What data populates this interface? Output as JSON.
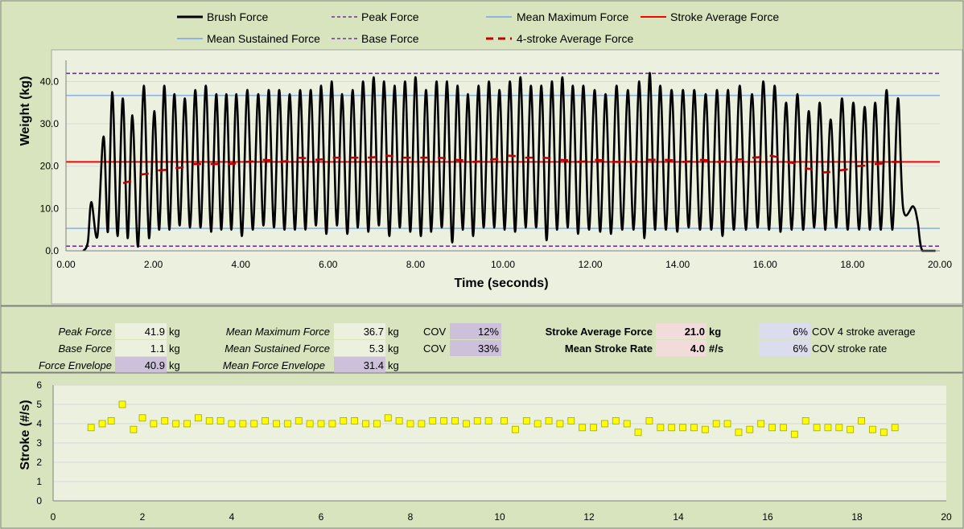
{
  "colors": {
    "background": "#d7e4bd",
    "plot_area": "#ebf1de",
    "brush": "#000000",
    "peak_base": "#7030a0",
    "mean_lines": "#8db4e2",
    "stroke_avg": "#ff0000",
    "four_stroke": "#c00000",
    "marker": "#ffff00",
    "cell_light": "#ebf1de",
    "cell_purple": "#ccc0da",
    "cell_pink": "#f2dcdb",
    "cell_blue": "#dcdcef"
  },
  "chart_data": [
    {
      "type": "line",
      "legend": [
        "Brush Force",
        "Peak Force",
        "Mean Maximum Force",
        "Stroke Average Force",
        "Mean Sustained Force",
        "Base Force",
        "4-stroke Average Force"
      ],
      "xlabel": "Time (seconds)",
      "ylabel": "Weight (kg)",
      "xlim": [
        0,
        20
      ],
      "ylim": [
        0,
        45
      ],
      "x_ticks": [
        "0.00",
        "2.00",
        "4.00",
        "6.00",
        "8.00",
        "10.00",
        "12.00",
        "14.00",
        "16.00",
        "18.00",
        "20.00"
      ],
      "y_ticks": [
        "0.0",
        "10.0",
        "20.0",
        "30.0",
        "40.0"
      ],
      "reference_lines": {
        "peak_force": 41.9,
        "mean_maximum_force": 36.7,
        "stroke_average_force": 21.0,
        "mean_sustained_force": 5.3,
        "base_force": 1.1
      },
      "brush_force": {
        "t_start": 0.4,
        "t_end": 19.6,
        "peak_times": [
          0.58,
          0.86,
          1.06,
          1.3,
          1.52,
          1.78,
          2.02,
          2.25,
          2.48,
          2.72,
          2.96,
          3.2,
          3.44,
          3.67,
          3.9,
          4.15,
          4.4,
          4.64,
          4.88,
          5.12,
          5.36,
          5.6,
          5.84,
          6.08,
          6.32,
          6.56,
          6.8,
          7.04,
          7.28,
          7.52,
          7.76,
          8.0,
          8.24,
          8.48,
          8.72,
          8.96,
          9.2,
          9.44,
          9.68,
          9.92,
          10.16,
          10.4,
          10.64,
          10.88,
          11.12,
          11.36,
          11.6,
          11.84,
          12.1,
          12.35,
          12.6,
          12.86,
          13.12,
          13.36,
          13.6,
          13.86,
          14.12,
          14.38,
          14.64,
          14.9,
          15.15,
          15.42,
          15.7,
          15.96,
          16.22,
          16.48,
          16.74,
          17.0,
          17.25,
          17.5,
          17.76,
          18.02,
          18.28,
          18.52,
          18.78,
          19.04
        ],
        "peak_values": [
          11.5,
          27,
          37.5,
          36,
          32,
          39,
          33,
          39,
          37,
          36,
          38,
          39,
          37,
          37,
          37,
          38,
          37,
          38,
          38,
          37,
          38,
          38,
          39,
          40,
          37,
          38,
          40,
          41,
          40,
          39,
          40,
          41,
          38,
          40,
          40,
          39,
          37,
          39,
          40,
          38,
          40,
          41,
          39,
          39,
          40,
          41,
          39,
          39,
          38,
          37,
          39,
          38,
          40,
          42,
          39,
          38,
          38,
          38,
          37,
          38,
          38,
          39,
          37,
          40,
          39,
          35,
          37,
          33,
          35,
          31,
          36,
          35,
          34,
          35,
          38,
          36
        ],
        "trough_values": [
          3.5,
          4.5,
          3.5,
          3,
          1,
          3,
          5,
          5,
          6,
          5.5,
          5.5,
          4.5,
          5,
          5,
          3.5,
          5,
          6,
          5.5,
          5,
          5,
          5,
          6,
          4,
          6,
          4,
          5.5,
          4.5,
          6,
          3.5,
          5.5,
          4.5,
          3.5,
          4.5,
          5.5,
          2,
          5,
          3.5,
          5.5,
          5.5,
          5,
          4.5,
          5.5,
          5.5,
          2.5,
          5,
          5.5,
          4,
          5,
          4.5,
          4,
          5,
          5,
          3,
          5,
          5,
          4.5,
          5.5,
          5,
          5,
          3.5,
          5,
          5,
          5.5,
          5,
          4.5,
          5,
          5,
          5.5,
          5,
          5.5,
          5,
          5,
          5,
          5,
          5
        ]
      },
      "four_stroke_average": {
        "x": [
          1.4,
          1.8,
          2.2,
          2.6,
          3.0,
          3.4,
          3.8,
          4.2,
          4.6,
          5.0,
          5.4,
          5.8,
          6.2,
          6.6,
          7.0,
          7.4,
          7.8,
          8.2,
          8.6,
          9.0,
          9.4,
          9.8,
          10.2,
          10.6,
          11.0,
          11.4,
          11.8,
          12.2,
          12.6,
          13.0,
          13.4,
          13.8,
          14.2,
          14.6,
          15.0,
          15.4,
          15.8,
          16.2,
          16.6,
          17.0,
          17.4,
          17.8,
          18.2,
          18.6,
          19.0
        ],
        "y": [
          16,
          18,
          19,
          19.5,
          20.5,
          20.5,
          20.5,
          21,
          21.5,
          21,
          22,
          21.5,
          22,
          22,
          22,
          22.5,
          22,
          22,
          22,
          21.5,
          21,
          21.5,
          22.5,
          22,
          22,
          21.5,
          21,
          21.5,
          21,
          21,
          21.5,
          21.5,
          21,
          21.5,
          21,
          21.5,
          22,
          22.5,
          21,
          19.5,
          18.5,
          19,
          20,
          20.5,
          21
        ]
      }
    },
    {
      "type": "scatter",
      "xlabel": "",
      "ylabel": "Stroke (#/s)",
      "xlim": [
        0,
        20
      ],
      "ylim": [
        0,
        6
      ],
      "x_ticks": [
        "0",
        "2",
        "4",
        "6",
        "8",
        "10",
        "12",
        "14",
        "16",
        "18",
        "20"
      ],
      "y_ticks": [
        "0",
        "1",
        "2",
        "3",
        "4",
        "5",
        "6"
      ],
      "x": [
        0.85,
        1.1,
        1.3,
        1.55,
        1.8,
        2.0,
        2.25,
        2.5,
        2.75,
        3.0,
        3.25,
        3.5,
        3.75,
        4.0,
        4.25,
        4.5,
        4.75,
        5.0,
        5.25,
        5.5,
        5.75,
        6.0,
        6.25,
        6.5,
        6.75,
        7.0,
        7.25,
        7.5,
        7.75,
        8.0,
        8.25,
        8.5,
        8.75,
        9.0,
        9.25,
        9.5,
        9.75,
        10.1,
        10.35,
        10.6,
        10.85,
        11.1,
        11.35,
        11.6,
        11.85,
        12.1,
        12.35,
        12.6,
        12.85,
        13.1,
        13.35,
        13.6,
        13.85,
        14.1,
        14.35,
        14.6,
        14.85,
        15.1,
        15.35,
        15.6,
        15.85,
        16.1,
        16.35,
        16.6,
        16.85,
        17.1,
        17.35,
        17.6,
        17.85,
        18.1,
        18.35,
        18.6,
        18.85
      ],
      "y": [
        3.8,
        4.0,
        4.15,
        5.0,
        3.7,
        4.3,
        4.0,
        4.15,
        4.0,
        4.0,
        4.3,
        4.15,
        4.15,
        4.0,
        4.0,
        4.0,
        4.15,
        4.0,
        4.0,
        4.15,
        4.0,
        4.0,
        4.0,
        4.15,
        4.15,
        4.0,
        4.0,
        4.3,
        4.15,
        4.0,
        4.0,
        4.15,
        4.15,
        4.15,
        4.0,
        4.15,
        4.15,
        4.15,
        3.7,
        4.15,
        4.0,
        4.15,
        4.0,
        4.15,
        3.8,
        3.8,
        4.0,
        4.15,
        4.0,
        3.55,
        4.15,
        3.8,
        3.8,
        3.8,
        3.8,
        3.7,
        4.0,
        4.0,
        3.55,
        3.7,
        4.0,
        3.8,
        3.8,
        3.45,
        4.15,
        3.8,
        3.8,
        3.8,
        3.7,
        4.15,
        3.7,
        3.55,
        3.8
      ]
    }
  ],
  "stats": {
    "peak_force": {
      "label": "Peak Force",
      "value": "41.9",
      "unit": "kg"
    },
    "base_force": {
      "label": "Base Force",
      "value": "1.1",
      "unit": "kg"
    },
    "force_envelope": {
      "label": "Force Envelope",
      "value": "40.9",
      "unit": "kg"
    },
    "mean_max": {
      "label": "Mean Maximum Force",
      "value": "36.7",
      "unit": "kg"
    },
    "mean_sustained": {
      "label": "Mean Sustained Force",
      "value": "5.3",
      "unit": "kg"
    },
    "mean_envelope": {
      "label": "Mean Force Envelope",
      "value": "31.4",
      "unit": "kg"
    },
    "cov1": {
      "label": "COV",
      "value": "12%"
    },
    "cov2": {
      "label": "COV",
      "value": "33%"
    },
    "stroke_avg": {
      "label": "Stroke Average Force",
      "value": "21.0",
      "unit": "kg"
    },
    "stroke_rate": {
      "label": "Mean Stroke Rate",
      "value": "4.0",
      "unit": "#/s"
    },
    "cov_4stroke": {
      "value": "6%",
      "label": "COV 4 stroke average"
    },
    "cov_rate": {
      "value": "6%",
      "label": "COV stroke rate"
    }
  }
}
